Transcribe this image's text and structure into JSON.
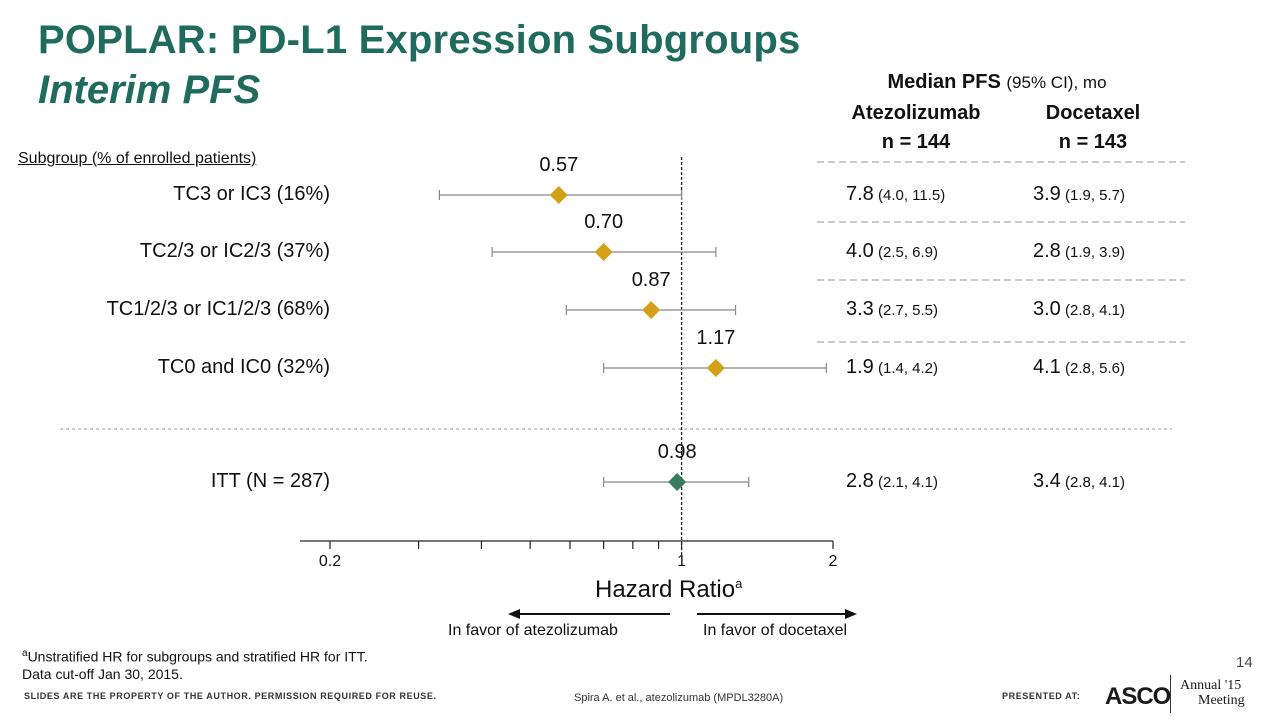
{
  "slide": {
    "title": "POPLAR: PD-L1 Expression Subgroups",
    "subtitle": "Interim PFS",
    "page_number": "14",
    "footnote_line1": "Unstratified HR for subgroups and stratified HR for ITT.",
    "footnote_sup": "a",
    "footnote_line2": "Data cut-off Jan 30, 2015.",
    "property_notice": "SLIDES ARE THE PROPERTY OF THE AUTHOR. PERMISSION REQUIRED FOR REUSE.",
    "citation": "Spira A. et al., atezolizumab (MPDL3280A)",
    "presented_at": "PRESENTED AT:",
    "asco": "ASCO",
    "annual_line1": "Annual '15",
    "annual_line2": "Meeting"
  },
  "table": {
    "header_main": "Median PFS",
    "header_ci": "(95% CI), mo",
    "col1_name": "Atezolizumab",
    "col1_n": "n = 144",
    "col2_name": "Docetaxel",
    "col2_n": "n = 143"
  },
  "chart_data": {
    "type": "forest",
    "xscale": "log",
    "xlim": [
      0.2,
      2
    ],
    "xticks": [
      "0.2",
      "1",
      "2"
    ],
    "xlabel": "Hazard Ratio",
    "xlabel_sup": "a",
    "reference_line": 1,
    "subgroup_header": "Subgroup (% of enrolled patients)",
    "favor_left": "In favor of atezolizumab",
    "favor_right": "In favor of docetaxel",
    "colors": {
      "subgroup_marker": "#d4a017",
      "itt_marker": "#3a7a5e",
      "ci_line": "#888888",
      "title": "#1f6b5e"
    },
    "rows": [
      {
        "label": "TC3 or IC3 (16%)",
        "hr": 0.57,
        "hr_label": "0.57",
        "ci": [
          0.33,
          1.0
        ],
        "atezo": "7.8",
        "atezo_ci": "(4.0, 11.5)",
        "doce": "3.9",
        "doce_ci": "(1.9, 5.7)",
        "marker": "subgroup"
      },
      {
        "label": "TC2/3 or IC2/3 (37%)",
        "hr": 0.7,
        "hr_label": "0.70",
        "ci": [
          0.42,
          1.17
        ],
        "atezo": "4.0",
        "atezo_ci": "(2.5, 6.9)",
        "doce": "2.8",
        "doce_ci": "(1.9, 3.9)",
        "marker": "subgroup"
      },
      {
        "label": "TC1/2/3 or IC1/2/3 (68%)",
        "hr": 0.87,
        "hr_label": "0.87",
        "ci": [
          0.59,
          1.28
        ],
        "atezo": "3.3",
        "atezo_ci": "(2.7, 5.5)",
        "doce": "3.0",
        "doce_ci": "(2.8, 4.1)",
        "marker": "subgroup"
      },
      {
        "label": "TC0 and IC0 (32%)",
        "hr": 1.17,
        "hr_label": "1.17",
        "ci": [
          0.7,
          1.94
        ],
        "atezo": "1.9",
        "atezo_ci": "(1.4, 4.2)",
        "doce": "4.1",
        "doce_ci": "(2.8, 5.6)",
        "marker": "subgroup"
      },
      {
        "label": "ITT (N = 287)",
        "hr": 0.98,
        "hr_label": "0.98",
        "ci": [
          0.7,
          1.36
        ],
        "atezo": "2.8",
        "atezo_ci": "(2.1, 4.1)",
        "doce": "3.4",
        "doce_ci": "(2.8, 4.1)",
        "marker": "itt"
      }
    ]
  }
}
